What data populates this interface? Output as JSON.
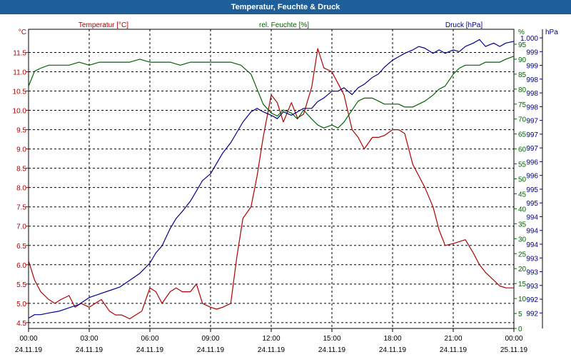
{
  "window": {
    "title": "Temperatur, Feuchte & Druck"
  },
  "chart_data": {
    "type": "line",
    "legend_labels": [
      "Temperatur [°C]",
      "rel. Feuchte [%]",
      "Druck [hPa]"
    ],
    "axes": {
      "left": {
        "unit": "°C",
        "min": 4.35,
        "max": 12.1,
        "ticks": [
          "4.5",
          "5.0",
          "5.5",
          "6.0",
          "6.5",
          "7.0",
          "7.5",
          "8.0",
          "8.5",
          "9.0",
          "9.5",
          "10.0",
          "10.5",
          "11.0",
          "11.5"
        ],
        "tick_values": [
          4.5,
          5.0,
          5.5,
          6.0,
          6.5,
          7.0,
          7.5,
          8.0,
          8.5,
          9.0,
          9.5,
          10.0,
          10.5,
          11.0,
          11.5
        ],
        "color": "#b00000"
      },
      "middle": {
        "unit": "%",
        "min": 0,
        "max": 100,
        "ticks": [
          "0",
          "5",
          "10",
          "15",
          "20",
          "25",
          "30",
          "35",
          "40",
          "45",
          "50",
          "55",
          "60",
          "65",
          "70",
          "75",
          "80",
          "85",
          "90",
          "95"
        ],
        "tick_values": [
          0,
          5,
          10,
          15,
          20,
          25,
          30,
          35,
          40,
          45,
          50,
          55,
          60,
          65,
          70,
          75,
          80,
          85,
          90,
          95
        ],
        "color": "#006400"
      },
      "right": {
        "unit": "hPa",
        "min": 991.6,
        "max": 1000.3,
        "ticks": [
          "992",
          "992",
          "993",
          "993",
          "993",
          "994",
          "994",
          "994",
          "995",
          "995",
          "996",
          "996",
          "997",
          "997",
          "997",
          "998",
          "998",
          "998",
          "999",
          "999",
          "1.000"
        ],
        "tick_values": [
          992.05,
          992.45,
          992.85,
          993.25,
          993.65,
          994.05,
          994.45,
          994.85,
          995.25,
          995.65,
          996.05,
          996.45,
          996.85,
          997.25,
          997.65,
          998.05,
          998.45,
          998.85,
          999.25,
          999.65,
          1000.05
        ],
        "color": "#00008b"
      }
    },
    "x_range": [
      0,
      24
    ],
    "x_ticks": [
      {
        "x": 0,
        "time": "00:00",
        "date": "24.11.19"
      },
      {
        "x": 3,
        "time": "03:00",
        "date": "24.11.19"
      },
      {
        "x": 6,
        "time": "06:00",
        "date": "24.11.19"
      },
      {
        "x": 9,
        "time": "09:00",
        "date": "24.11.19"
      },
      {
        "x": 12,
        "time": "12:00",
        "date": "24.11.19"
      },
      {
        "x": 15,
        "time": "15:00",
        "date": "24.11.19"
      },
      {
        "x": 18,
        "time": "18:00",
        "date": "24.11.19"
      },
      {
        "x": 21,
        "time": "21:00",
        "date": "24.11.19"
      },
      {
        "x": 24,
        "time": "00:00",
        "date": "25.11.19"
      }
    ],
    "grid": true,
    "series": [
      {
        "name": "Temperatur [°C]",
        "axis": "left",
        "color": "#b00000",
        "x": [
          0,
          0.3,
          0.6,
          1,
          1.3,
          1.6,
          2,
          2.3,
          2.6,
          3,
          3.3,
          3.6,
          4,
          4.3,
          4.6,
          5,
          5.3,
          5.6,
          6,
          6.3,
          6.6,
          7,
          7.3,
          7.6,
          8,
          8.3,
          8.6,
          9,
          9.3,
          9.6,
          10,
          10.3,
          10.6,
          11,
          11.3,
          11.6,
          12,
          12.3,
          12.6,
          13,
          13.3,
          13.6,
          14,
          14.3,
          14.6,
          15,
          15.3,
          15.6,
          16,
          16.3,
          16.6,
          17,
          17.3,
          17.6,
          18,
          18.3,
          18.6,
          19,
          19.3,
          19.6,
          20,
          20.3,
          20.6,
          21,
          21.3,
          21.6,
          22,
          22.3,
          22.6,
          23,
          23.3,
          23.6,
          24
        ],
        "y": [
          6.1,
          5.6,
          5.3,
          5.1,
          5.0,
          5.1,
          5.2,
          4.9,
          5.0,
          4.9,
          5.0,
          5.1,
          4.8,
          4.7,
          4.7,
          4.6,
          4.7,
          4.8,
          5.4,
          5.3,
          5.0,
          5.3,
          5.4,
          5.3,
          5.3,
          5.5,
          5.0,
          4.9,
          4.85,
          4.9,
          5.0,
          6.2,
          7.2,
          7.5,
          8.3,
          9.3,
          10.4,
          10.2,
          9.7,
          10.2,
          9.8,
          9.9,
          10.6,
          11.6,
          11.1,
          11.0,
          10.7,
          10.4,
          9.5,
          9.3,
          9.0,
          9.3,
          9.3,
          9.35,
          9.5,
          9.5,
          9.4,
          8.6,
          8.3,
          8.0,
          7.5,
          6.9,
          6.5,
          6.55,
          6.6,
          6.65,
          6.3,
          6.0,
          5.8,
          5.6,
          5.45,
          5.4,
          5.4
        ]
      },
      {
        "name": "rel. Feuchte [%]",
        "axis": "middle",
        "color": "#006400",
        "x": [
          0,
          0.3,
          0.6,
          1,
          1.5,
          2,
          2.5,
          3,
          3.5,
          4,
          4.5,
          5,
          5.5,
          6,
          6.5,
          7,
          7.5,
          8,
          8.5,
          9,
          9.5,
          10,
          10.5,
          11,
          11.3,
          11.6,
          12,
          12.3,
          12.6,
          13,
          13.3,
          13.6,
          14,
          14.3,
          14.6,
          15,
          15.3,
          15.6,
          16,
          16.3,
          16.6,
          17,
          17.3,
          17.6,
          18,
          18.3,
          18.6,
          19,
          19.3,
          19.6,
          20,
          20.3,
          20.6,
          21,
          21.3,
          21.6,
          22,
          22.3,
          22.6,
          23,
          23.3,
          23.6,
          24
        ],
        "y": [
          81,
          86,
          87,
          88,
          88,
          88,
          89,
          88,
          89,
          89,
          89,
          89,
          90,
          89,
          89,
          89,
          88,
          89,
          89,
          89,
          89,
          89,
          88,
          85,
          80,
          75,
          72,
          71,
          73,
          72,
          70,
          73,
          70,
          68,
          67,
          68,
          67,
          69,
          73,
          76,
          77,
          77,
          76,
          75,
          75,
          75,
          74,
          74,
          75,
          76,
          78,
          80,
          81,
          85,
          87,
          88,
          88,
          88,
          89,
          89,
          89,
          90,
          91
        ]
      },
      {
        "name": "Druck [hPa]",
        "axis": "right",
        "color": "#00008b",
        "x": [
          0,
          0.3,
          0.6,
          1,
          1.5,
          2,
          2.5,
          3,
          3.5,
          4,
          4.5,
          5,
          5.5,
          6,
          6.3,
          6.6,
          7,
          7.3,
          7.6,
          8,
          8.3,
          8.6,
          9,
          9.3,
          9.6,
          10,
          10.3,
          10.6,
          11,
          11.3,
          11.6,
          12,
          12.3,
          12.6,
          13,
          13.3,
          13.6,
          14,
          14.3,
          14.6,
          15,
          15.3,
          15.6,
          16,
          16.3,
          16.6,
          17,
          17.3,
          17.6,
          18,
          18.3,
          18.6,
          19,
          19.3,
          19.6,
          20,
          20.3,
          20.6,
          21,
          21.3,
          21.6,
          22,
          22.3,
          22.6,
          23,
          23.3,
          23.6,
          24
        ],
        "y": [
          991.9,
          992.0,
          992.0,
          992.05,
          992.1,
          992.2,
          992.3,
          992.5,
          992.6,
          992.7,
          992.8,
          993.0,
          993.2,
          993.5,
          993.8,
          994.0,
          994.5,
          994.8,
          995.0,
          995.3,
          995.6,
          995.9,
          996.1,
          996.4,
          996.7,
          997.0,
          997.3,
          997.6,
          997.9,
          998.0,
          997.9,
          997.8,
          997.7,
          997.9,
          997.8,
          997.9,
          998.0,
          998.0,
          998.2,
          998.3,
          998.5,
          998.5,
          998.6,
          998.4,
          998.6,
          998.7,
          998.9,
          999.0,
          999.2,
          999.4,
          999.5,
          999.6,
          999.7,
          999.8,
          999.75,
          999.6,
          999.7,
          999.6,
          999.7,
          999.65,
          999.8,
          999.9,
          1000.0,
          999.8,
          999.9,
          999.8,
          999.9,
          999.95
        ]
      }
    ]
  }
}
